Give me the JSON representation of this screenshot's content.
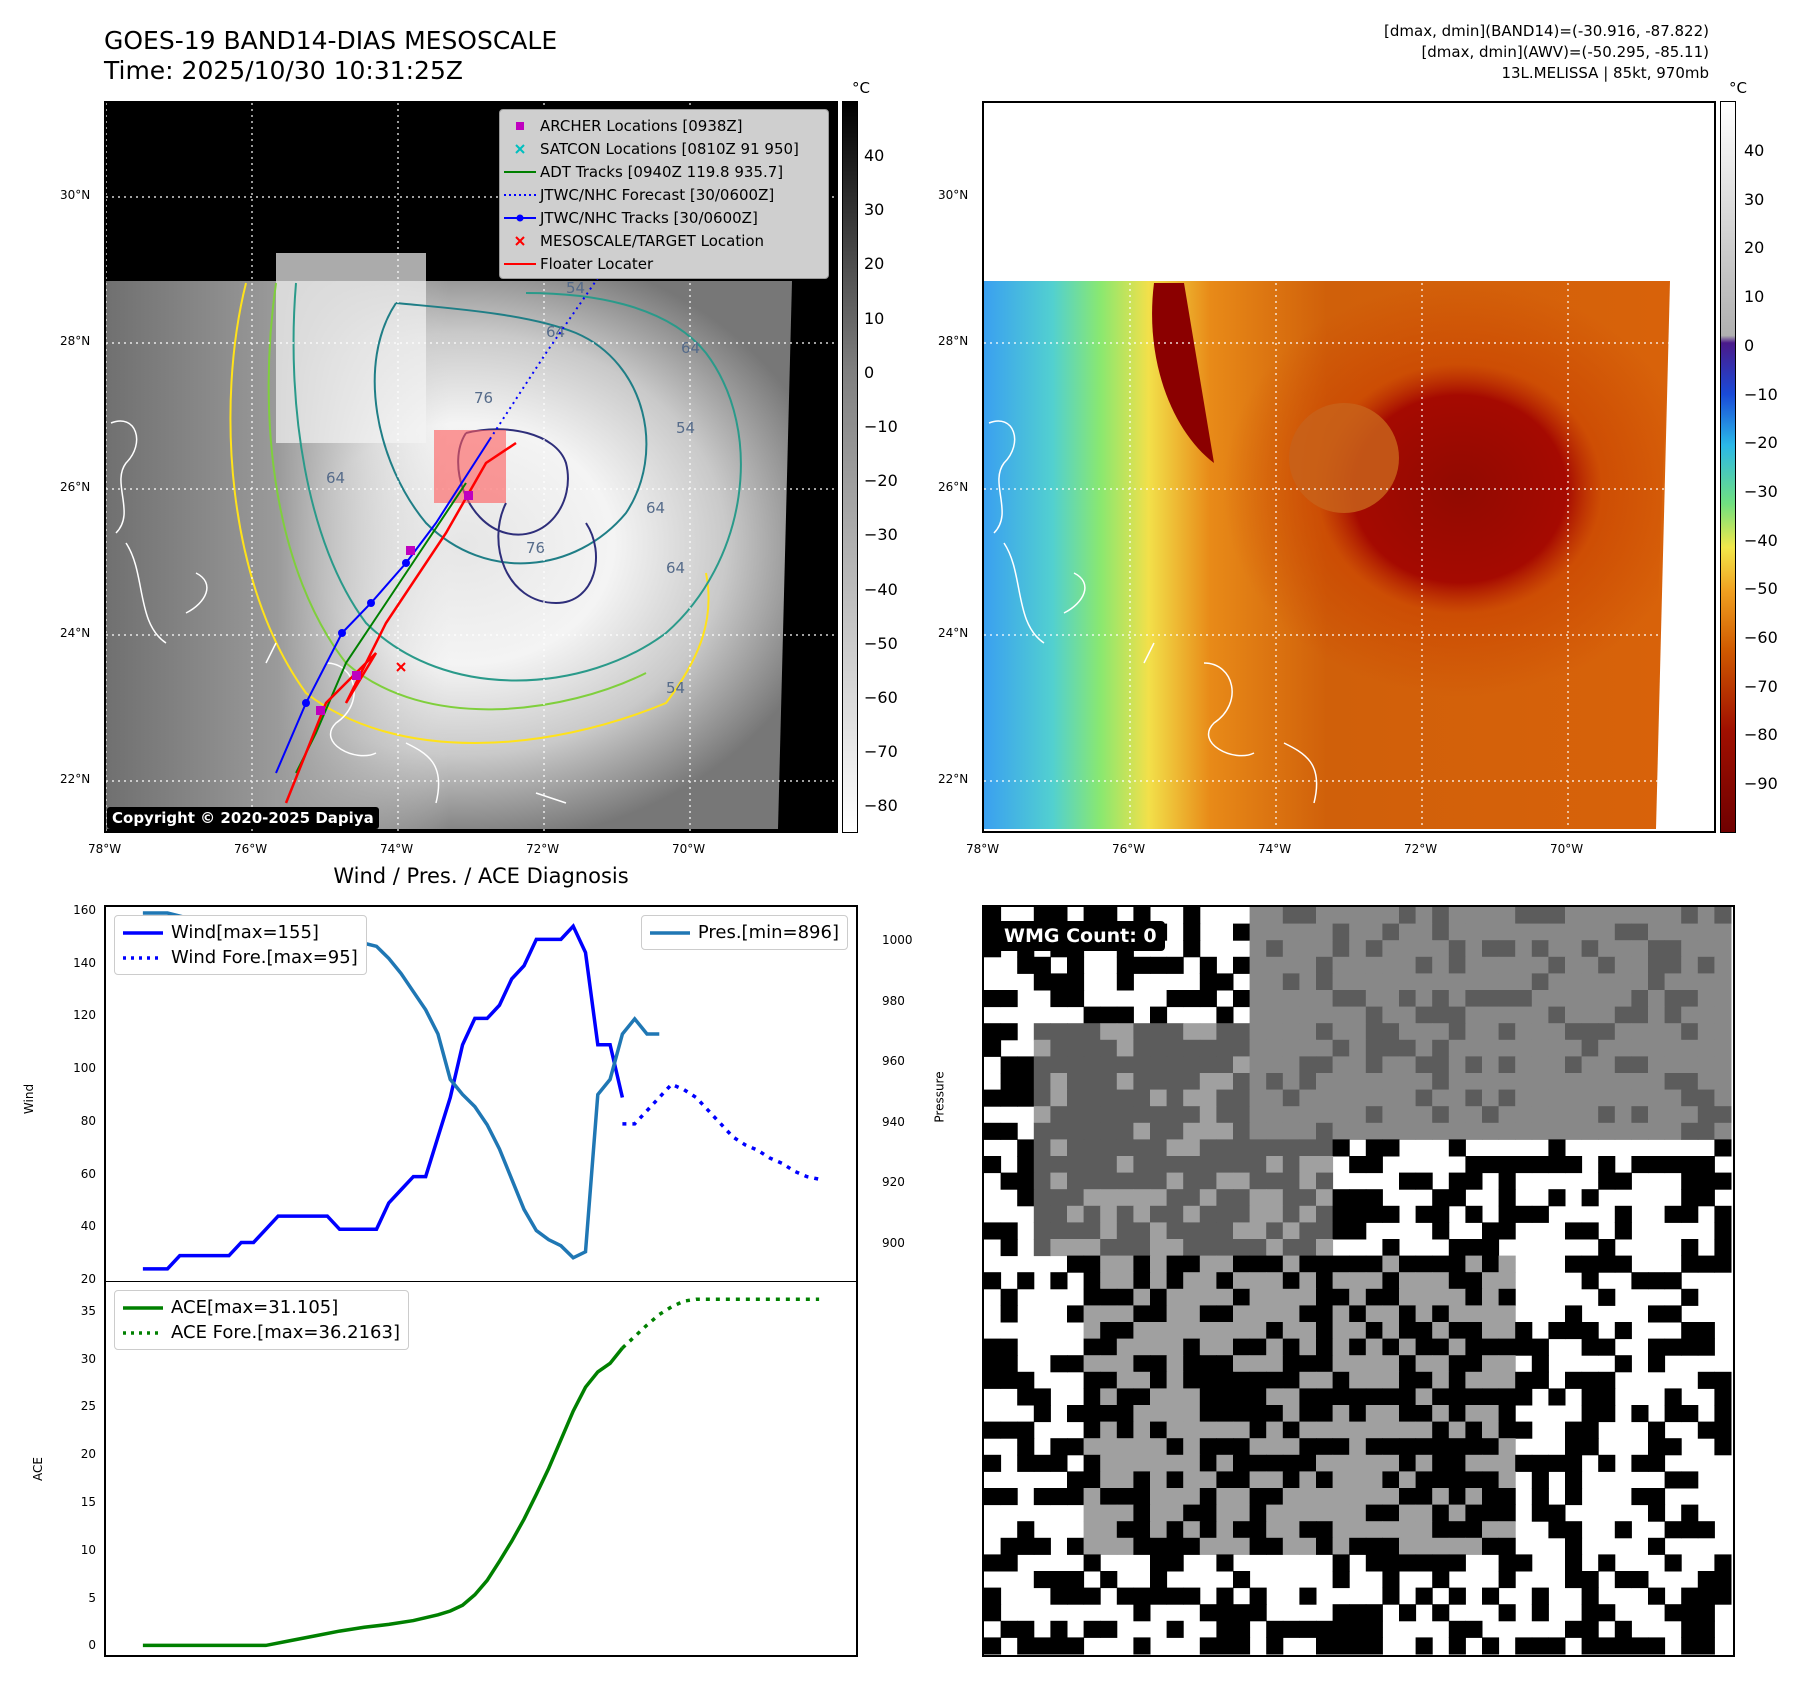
{
  "header": {
    "title_line1": "GOES-19 BAND14-DIAS MESOSCALE",
    "title_line2": "Time: 2025/10/30 10:31:25Z",
    "info_line1": "[dmax, dmin](BAND14)=(-30.916, -87.822)",
    "info_line2": "[dmax, dmin](AWV)=(-50.295, -85.11)",
    "info_line3": "13L.MELISSA | 85kt, 970mb"
  },
  "map_axes": {
    "lon_ticks": [
      "78°W",
      "76°W",
      "74°W",
      "72°W",
      "70°W"
    ],
    "lat_ticks": [
      "30°N",
      "28°N",
      "26°N",
      "24°N",
      "22°N"
    ]
  },
  "colorbar_left": {
    "unit": "°C",
    "ticks": [
      "40",
      "30",
      "20",
      "10",
      "0",
      "−10",
      "−20",
      "−30",
      "−40",
      "−50",
      "−60",
      "−70",
      "−80"
    ]
  },
  "colorbar_right": {
    "unit": "°C",
    "ticks": [
      "40",
      "30",
      "20",
      "10",
      "0",
      "−10",
      "−20",
      "−30",
      "−40",
      "−50",
      "−60",
      "−70",
      "−80",
      "−90"
    ]
  },
  "map_legend": {
    "items": [
      {
        "label": "ARCHER Locations [0938Z]",
        "color": "#bf00bf",
        "marker": "square"
      },
      {
        "label": "SATCON Locations [0810Z 91 950]",
        "color": "#00bfbf",
        "marker": "x"
      },
      {
        "label": "ADT Tracks [0940Z 119.8 935.7]",
        "color": "#008000",
        "marker": "line"
      },
      {
        "label": "JTWC/NHC Forecast [30/0600Z]",
        "color": "#0000ff",
        "marker": "dotted"
      },
      {
        "label": "JTWC/NHC Tracks [30/0600Z]",
        "color": "#0000ff",
        "marker": "line-dot"
      },
      {
        "label": "MESOSCALE/TARGET Location",
        "color": "#ff0000",
        "marker": "x"
      },
      {
        "label": "Floater Locater",
        "color": "#ff0000",
        "marker": "line"
      }
    ]
  },
  "copyright": "Copyright © 2020-2025 Dapiya",
  "contour_labels": [
    "64",
    "76",
    "54",
    "64",
    "64",
    "76",
    "64",
    "54",
    "64",
    "54"
  ],
  "diag_title": "Wind / Pres. / ACE Diagnosis",
  "wmg_badge": "WMG Count: 0",
  "chart_data": [
    {
      "type": "line",
      "name": "wind-pressure",
      "xlabel": "",
      "ylabel": "Wind",
      "ylabel_right": "Pressure",
      "ylim": [
        20,
        160
      ],
      "yticks": [
        "160",
        "140",
        "120",
        "100",
        "80",
        "60",
        "40",
        "20"
      ],
      "ylim_right": [
        888,
        1012
      ],
      "yticks_right": [
        "1000",
        "980",
        "960",
        "940",
        "920",
        "900"
      ],
      "legend_left": "top-left",
      "legend_right": "top-right",
      "series": [
        {
          "name": "Wind[max=155]",
          "color": "#0000ff",
          "style": "solid",
          "axis": "left",
          "x": [
            0,
            1,
            2,
            3,
            4,
            5,
            6,
            7,
            8,
            9,
            10,
            11,
            12,
            13,
            14,
            15,
            16,
            17,
            18,
            19,
            20,
            21,
            22,
            23,
            24,
            25,
            26,
            27,
            28,
            29,
            30,
            31,
            32,
            33,
            34,
            35,
            36,
            37,
            38,
            39
          ],
          "y": [
            25,
            25,
            25,
            30,
            30,
            30,
            30,
            30,
            35,
            35,
            40,
            45,
            45,
            45,
            45,
            45,
            40,
            40,
            40,
            40,
            50,
            55,
            60,
            60,
            75,
            90,
            110,
            120,
            120,
            125,
            135,
            140,
            150,
            150,
            150,
            155,
            145,
            110,
            110,
            90
          ]
        },
        {
          "name": "Wind Fore.[max=95]",
          "color": "#0000ff",
          "style": "dotted",
          "axis": "left",
          "x": [
            39,
            40,
            41,
            42,
            43,
            44,
            45,
            46,
            47,
            48,
            49,
            50,
            51,
            52,
            53,
            54,
            55
          ],
          "y": [
            80,
            80,
            85,
            90,
            95,
            93,
            90,
            85,
            80,
            75,
            72,
            70,
            67,
            65,
            62,
            60,
            59
          ]
        },
        {
          "name": "Pres.[min=896]",
          "color": "#1f77b4",
          "style": "solid",
          "axis": "right",
          "x": [
            0,
            1,
            2,
            3,
            4,
            5,
            6,
            7,
            8,
            9,
            10,
            11,
            12,
            13,
            14,
            15,
            16,
            17,
            18,
            19,
            20,
            21,
            22,
            23,
            24,
            25,
            26,
            27,
            28,
            29,
            30,
            31,
            32,
            33,
            34,
            35,
            36,
            37,
            38,
            39,
            40,
            41,
            42
          ],
          "y": [
            1010,
            1010,
            1010,
            1009,
            1008,
            1006,
            1004,
            1003,
            1002,
            1002,
            1001,
            1000,
            1000,
            1000,
            1000,
            1000,
            1000,
            1000,
            1000,
            999,
            995,
            990,
            984,
            978,
            970,
            955,
            950,
            946,
            940,
            932,
            922,
            912,
            905,
            902,
            900,
            896,
            898,
            950,
            955,
            970,
            975,
            970,
            970
          ]
        }
      ]
    },
    {
      "type": "line",
      "name": "ace",
      "xlabel": "",
      "ylabel": "ACE",
      "ylim": [
        -1,
        38
      ],
      "yticks": [
        "35",
        "30",
        "25",
        "20",
        "15",
        "10",
        "5",
        "0"
      ],
      "legend": "top-left",
      "series": [
        {
          "name": "ACE[max=31.105]",
          "color": "#008000",
          "style": "solid",
          "x": [
            0,
            4,
            8,
            10,
            12,
            14,
            16,
            18,
            20,
            22,
            24,
            25,
            26,
            27,
            28,
            29,
            30,
            31,
            32,
            33,
            34,
            35,
            36,
            37,
            38,
            39
          ],
          "y": [
            0,
            0,
            0,
            0,
            0.5,
            1,
            1.5,
            1.9,
            2.2,
            2.6,
            3.2,
            3.6,
            4.2,
            5.3,
            6.8,
            8.8,
            10.9,
            13.2,
            15.8,
            18.5,
            21.5,
            24.5,
            27,
            28.6,
            29.5,
            31.1
          ]
        },
        {
          "name": "ACE Fore.[max=36.2163]",
          "color": "#008000",
          "style": "dotted",
          "x": [
            39,
            40,
            41,
            42,
            43,
            44,
            45,
            46,
            48,
            50,
            52,
            54,
            55
          ],
          "y": [
            31.1,
            32.3,
            33.5,
            34.6,
            35.4,
            36.0,
            36.2,
            36.2,
            36.2,
            36.2,
            36.2,
            36.2,
            36.2
          ]
        }
      ]
    }
  ]
}
